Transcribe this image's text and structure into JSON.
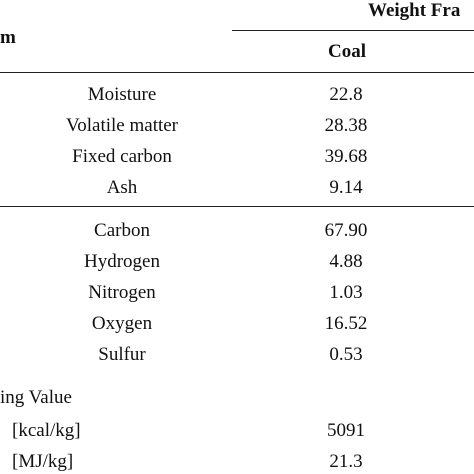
{
  "header": {
    "group": "Weight Fra",
    "left": "m",
    "column": "Coal"
  },
  "sections": [
    {
      "rows": [
        [
          "Moisture",
          "22.8"
        ],
        [
          "Volatile matter",
          "28.38"
        ],
        [
          "Fixed carbon",
          "39.68"
        ],
        [
          "Ash",
          "9.14"
        ]
      ]
    },
    {
      "rows": [
        [
          "Carbon",
          "67.90"
        ],
        [
          "Hydrogen",
          "4.88"
        ],
        [
          "Nitrogen",
          "1.03"
        ],
        [
          "Oxygen",
          "16.52"
        ],
        [
          "Sulfur",
          "0.53"
        ]
      ]
    }
  ],
  "heating": {
    "title": "ing Value",
    "rows": [
      [
        "[kcal/kg]",
        "5091"
      ],
      [
        "[MJ/kg]",
        "21.3"
      ]
    ]
  }
}
